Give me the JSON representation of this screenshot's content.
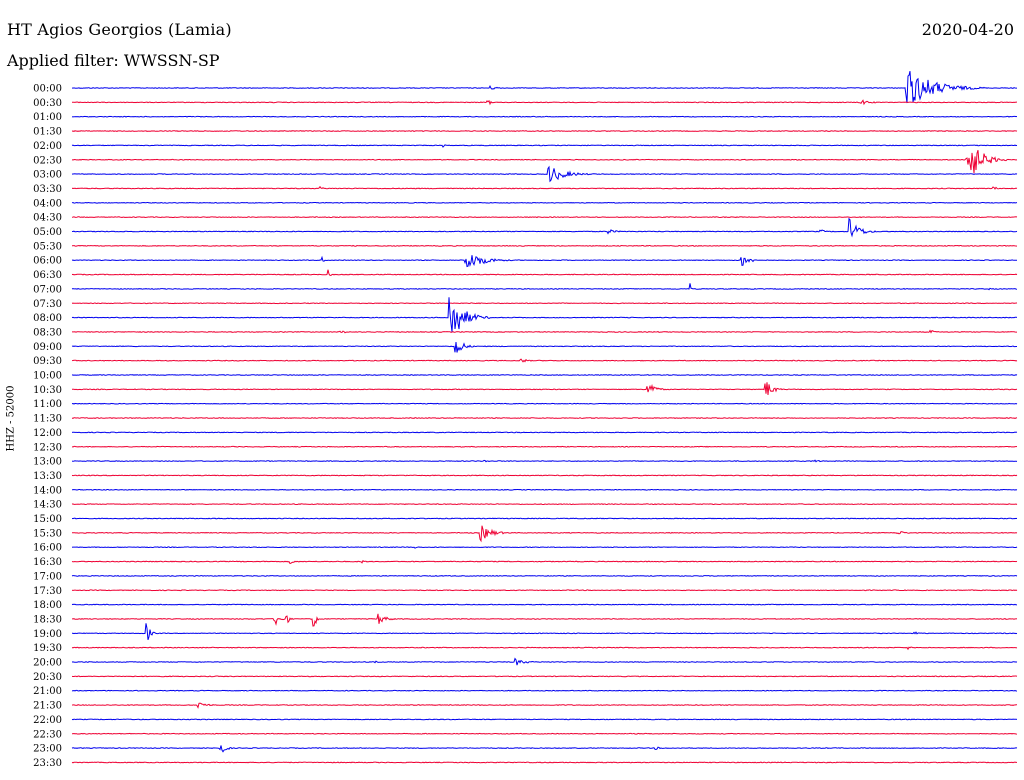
{
  "header": {
    "station": "HT Agios Georgios (Lamia)",
    "date": "2020-04-20",
    "filter": "Applied filter: WWSSN-SP"
  },
  "channel": "HHZ - 52000",
  "colors": {
    "even_row": "#0000ee",
    "odd_row": "#ee0033"
  },
  "rows": [
    "00:00",
    "00:30",
    "01:00",
    "01:30",
    "02:00",
    "02:30",
    "03:00",
    "03:30",
    "04:00",
    "04:30",
    "05:00",
    "05:30",
    "06:00",
    "06:30",
    "07:00",
    "07:30",
    "08:00",
    "08:30",
    "09:00",
    "09:30",
    "10:00",
    "10:30",
    "11:00",
    "11:30",
    "12:00",
    "12:30",
    "13:00",
    "13:30",
    "14:00",
    "14:30",
    "15:00",
    "15:30",
    "16:00",
    "16:30",
    "17:00",
    "17:30",
    "18:00",
    "18:30",
    "19:00",
    "19:30",
    "20:00",
    "20:30",
    "21:00",
    "21:30",
    "22:00",
    "22:30",
    "23:00",
    "23:30"
  ]
}
